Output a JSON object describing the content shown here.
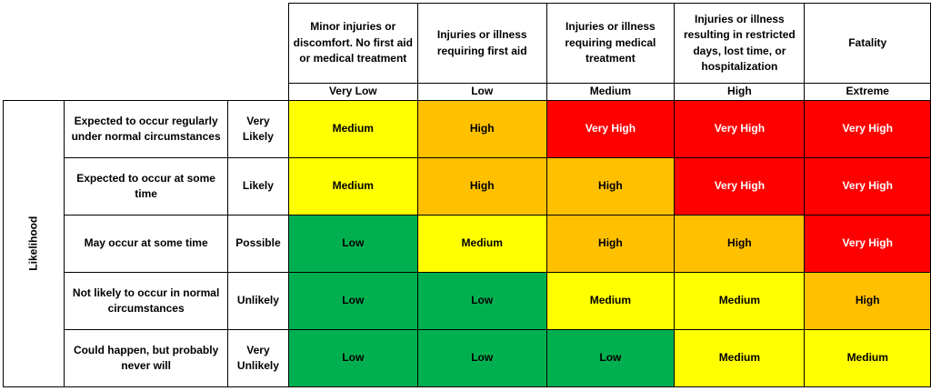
{
  "axis_label": "Likelihood",
  "severity": [
    {
      "description": "Minor injuries or discomfort. No first aid or medical treatment",
      "level": "Very Low"
    },
    {
      "description": "Injuries or illness requiring first aid",
      "level": "Low"
    },
    {
      "description": "Injuries or illness requiring medical treatment",
      "level": "Medium"
    },
    {
      "description": "Injuries or illness resulting in restricted days, lost time, or hospitalization",
      "level": "High"
    },
    {
      "description": "Fatality",
      "level": "Extreme"
    }
  ],
  "likelihood": [
    {
      "description": "Expected to occur regularly under normal circumstances",
      "level": "Very Likely",
      "ratings": [
        "Medium",
        "High",
        "Very High",
        "Very High",
        "Very High"
      ]
    },
    {
      "description": "Expected to occur at some time",
      "level": "Likely",
      "ratings": [
        "Medium",
        "High",
        "High",
        "Very High",
        "Very High"
      ]
    },
    {
      "description": "May occur at some time",
      "level": "Possible",
      "ratings": [
        "Low",
        "Medium",
        "High",
        "High",
        "Very High"
      ]
    },
    {
      "description": "Not likely to occur in normal circumstances",
      "level": "Unlikely",
      "ratings": [
        "Low",
        "Low",
        "Medium",
        "Medium",
        "High"
      ]
    },
    {
      "description": "Could happen, but probably never will",
      "level": "Very Unlikely",
      "ratings": [
        "Low",
        "Low",
        "Low",
        "Medium",
        "Medium"
      ]
    }
  ],
  "rating_colors": {
    "Low": "#00b050",
    "Medium": "#ffff00",
    "High": "#ffc000",
    "Very High": "#ff0000"
  }
}
